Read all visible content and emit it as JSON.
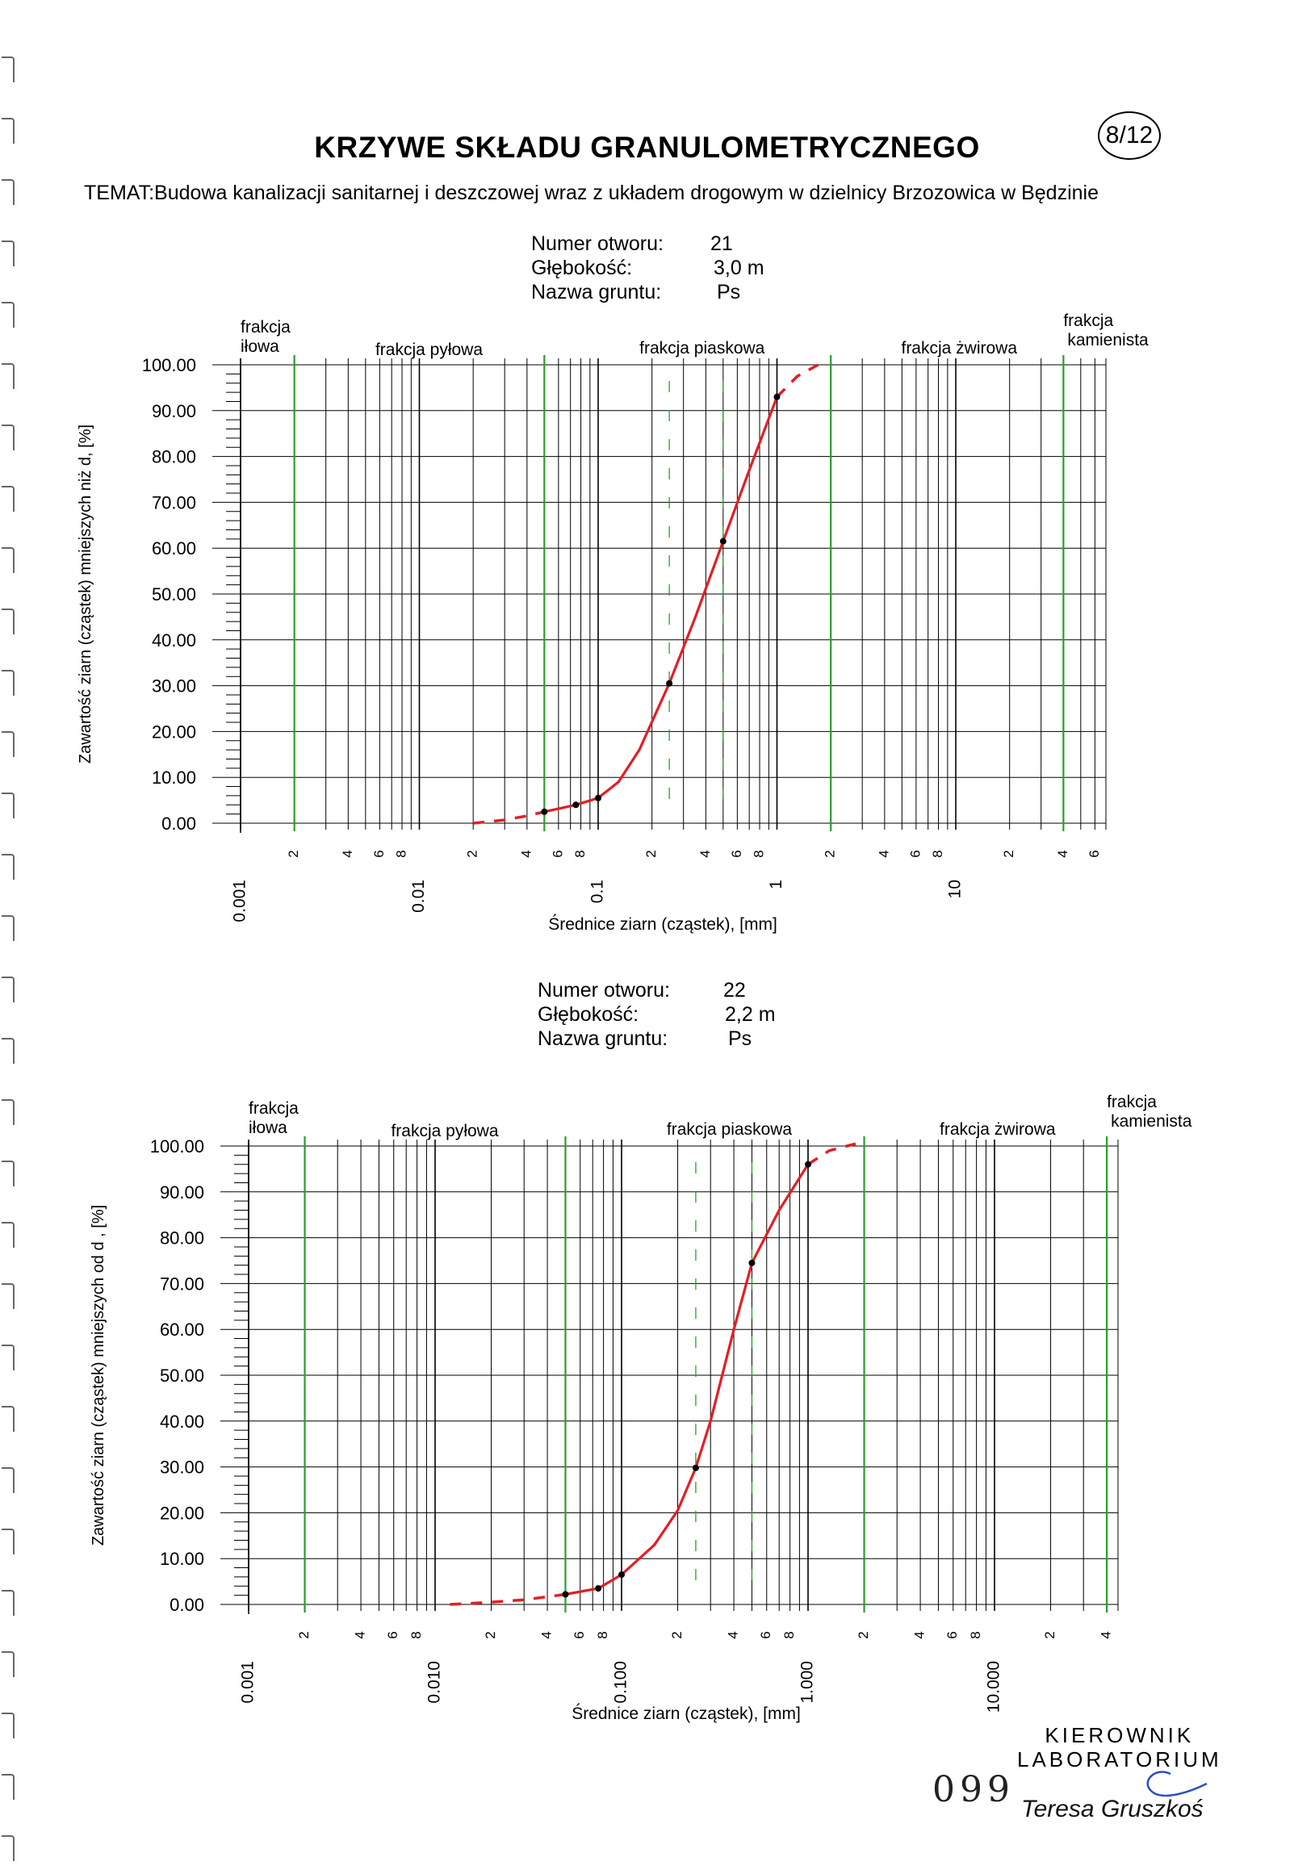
{
  "header": {
    "title": "KRZYWE SKŁADU GRANULOMETRYCZNEGO",
    "page_badge": "8/12",
    "subject": "TEMAT:Budowa kanalizacji sanitarnej i deszczowej wraz z układem drogowym w dzielnicy Brzozowica w Będzinie"
  },
  "samples": [
    {
      "meta": {
        "label_hole": "Numer otworu:",
        "hole": "21",
        "label_depth": "Głębokość:",
        "depth": "3,0 m",
        "label_soil": "Nazwa gruntu:",
        "soil": "Ps"
      },
      "fractions": {
        "clay": [
          "frakcja",
          "iłowa"
        ],
        "silt": "frakcja pyłowa",
        "sand": "frakcja piaskowa",
        "gravel": "frakcja żwirowa",
        "stone": [
          "frakcja",
          "kamienista"
        ]
      },
      "ylabel": "Zawartość ziarn (cząstek) mniejszych niż d, [%]",
      "xlabel": "Średnice ziarn (cząstek), [mm]",
      "x_major_labels": [
        "0.001",
        "0.01",
        "0.1",
        "1",
        "10"
      ]
    },
    {
      "meta": {
        "label_hole": "Numer otworu:",
        "hole": "22",
        "label_depth": "Głębokość:",
        "depth": "2,2 m",
        "label_soil": "Nazwa gruntu:",
        "soil": "Ps"
      },
      "fractions": {
        "clay": [
          "frakcja",
          "iłowa"
        ],
        "silt": "frakcja pyłowa",
        "sand": "frakcja piaskowa",
        "gravel": "frakcja żwirowa",
        "stone": [
          "frakcja",
          "kamienista"
        ]
      },
      "ylabel": "Zawartość ziarn (cząstek) mniejszych od d , [%]",
      "xlabel": "Średnice ziarn (cząstek), [mm]",
      "x_major_labels": [
        "0.001",
        "0.010",
        "0.100",
        "1.000",
        "10.000"
      ]
    }
  ],
  "footer": {
    "stamp_line1": "KIEROWNIK",
    "stamp_line2": "LABORATORIUM",
    "doc_number": "099",
    "signature": "Teresa Gruszkoś"
  },
  "colors": {
    "curve": "#e31e24",
    "fraction_boundary": "#2a9d2a",
    "grid": "#000000",
    "points": "#000000"
  },
  "chart_data": [
    {
      "type": "line",
      "x_scale": "log",
      "xlim": [
        0.001,
        50
      ],
      "ylim": [
        0,
        100
      ],
      "yticks": [
        "0.00",
        "10.00",
        "20.00",
        "30.00",
        "40.00",
        "50.00",
        "60.00",
        "70.00",
        "80.00",
        "90.00",
        "100.00"
      ],
      "fraction_boundaries": [
        0.002,
        0.05,
        2,
        40
      ],
      "dashed_markers": [
        0.25,
        0.5
      ],
      "measured_points": [
        {
          "x": 0.05,
          "y": 2.5
        },
        {
          "x": 0.075,
          "y": 4
        },
        {
          "x": 0.1,
          "y": 5.5
        },
        {
          "x": 0.25,
          "y": 30.5
        },
        {
          "x": 0.5,
          "y": 61.5
        },
        {
          "x": 1.0,
          "y": 93
        }
      ],
      "curve_solid": [
        {
          "x": 0.05,
          "y": 2.5
        },
        {
          "x": 0.075,
          "y": 4
        },
        {
          "x": 0.1,
          "y": 5.5
        },
        {
          "x": 0.13,
          "y": 9
        },
        {
          "x": 0.17,
          "y": 16
        },
        {
          "x": 0.25,
          "y": 30.5
        },
        {
          "x": 0.35,
          "y": 45
        },
        {
          "x": 0.5,
          "y": 61.5
        },
        {
          "x": 0.7,
          "y": 77
        },
        {
          "x": 1.0,
          "y": 93
        }
      ],
      "curve_dashed_low": [
        {
          "x": 0.02,
          "y": 0
        },
        {
          "x": 0.03,
          "y": 0.7
        },
        {
          "x": 0.04,
          "y": 1.6
        },
        {
          "x": 0.05,
          "y": 2.5
        }
      ],
      "curve_dashed_high": [
        {
          "x": 1.0,
          "y": 93
        },
        {
          "x": 1.3,
          "y": 97.5
        },
        {
          "x": 1.7,
          "y": 100
        }
      ]
    },
    {
      "type": "line",
      "x_scale": "log",
      "xlim": [
        0.001,
        50
      ],
      "ylim": [
        0,
        100
      ],
      "yticks": [
        "0.00",
        "10.00",
        "20.00",
        "30.00",
        "40.00",
        "50.00",
        "60.00",
        "70.00",
        "80.00",
        "90.00",
        "100.00"
      ],
      "fraction_boundaries": [
        0.002,
        0.05,
        2,
        40
      ],
      "dashed_markers": [
        0.25,
        0.5
      ],
      "measured_points": [
        {
          "x": 0.05,
          "y": 2.2
        },
        {
          "x": 0.075,
          "y": 3.5
        },
        {
          "x": 0.1,
          "y": 6.5
        },
        {
          "x": 0.25,
          "y": 29.8
        },
        {
          "x": 0.5,
          "y": 74.5
        },
        {
          "x": 1.0,
          "y": 96
        }
      ],
      "curve_solid": [
        {
          "x": 0.05,
          "y": 2.2
        },
        {
          "x": 0.075,
          "y": 3.5
        },
        {
          "x": 0.1,
          "y": 6.5
        },
        {
          "x": 0.15,
          "y": 13
        },
        {
          "x": 0.2,
          "y": 20.5
        },
        {
          "x": 0.25,
          "y": 29.8
        },
        {
          "x": 0.3,
          "y": 40
        },
        {
          "x": 0.4,
          "y": 60
        },
        {
          "x": 0.5,
          "y": 74.5
        },
        {
          "x": 0.7,
          "y": 86
        },
        {
          "x": 1.0,
          "y": 96
        }
      ],
      "curve_dashed_low": [
        {
          "x": 0.012,
          "y": 0
        },
        {
          "x": 0.02,
          "y": 0.5
        },
        {
          "x": 0.03,
          "y": 1
        },
        {
          "x": 0.05,
          "y": 2.2
        }
      ],
      "curve_dashed_high": [
        {
          "x": 1.0,
          "y": 96
        },
        {
          "x": 1.3,
          "y": 99
        },
        {
          "x": 1.8,
          "y": 100.5
        }
      ]
    }
  ]
}
